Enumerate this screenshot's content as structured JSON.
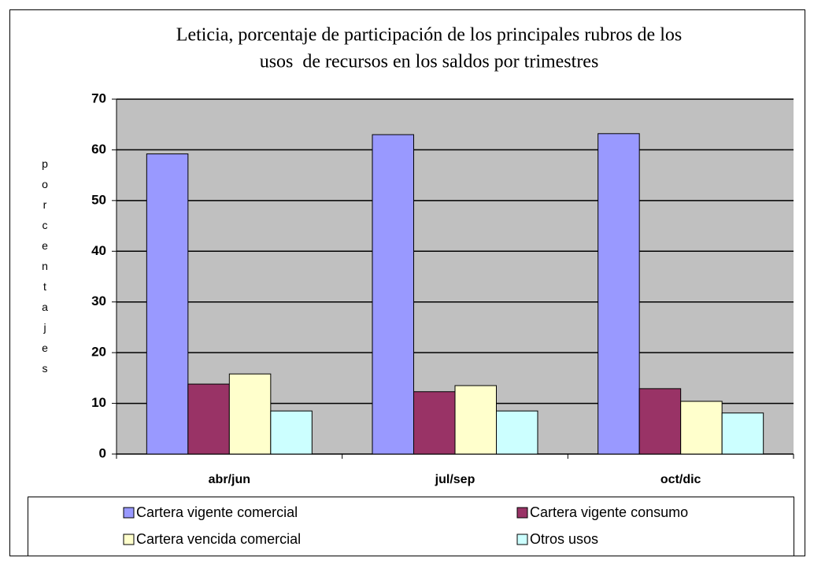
{
  "chart_data": {
    "type": "bar",
    "title": [
      "Leticia, porcentaje de participación de los principales rubros de los",
      "usos  de recursos en los saldos por trimestres"
    ],
    "y_label": "porcentajes",
    "categories": [
      "abr/jun",
      "jul/sep",
      "oct/dic"
    ],
    "series": [
      {
        "name": "Cartera vigente comercial",
        "color": "#9999ff",
        "values": [
          59.2,
          63.0,
          63.2
        ]
      },
      {
        "name": "Cartera vigente consumo",
        "color": "#993366",
        "values": [
          13.8,
          12.3,
          12.9
        ]
      },
      {
        "name": "Cartera vencida comercial",
        "color": "#ffffcc",
        "values": [
          15.8,
          13.5,
          10.4
        ]
      },
      {
        "name": "Otros usos",
        "color": "#ccffff",
        "values": [
          8.5,
          8.5,
          8.1
        ]
      }
    ],
    "ylim": [
      0,
      70
    ],
    "yticks": [
      0,
      10,
      20,
      30,
      40,
      50,
      60,
      70
    ],
    "grid": true,
    "legend": "bottom"
  }
}
